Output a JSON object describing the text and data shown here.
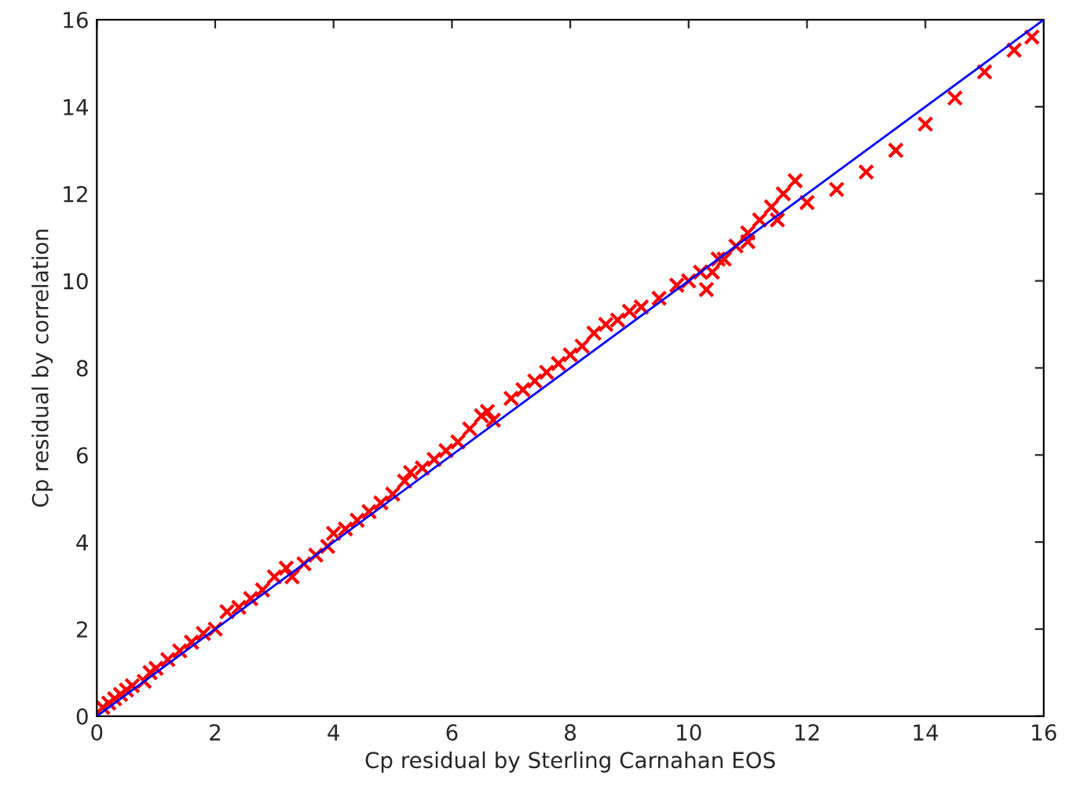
{
  "chart_data": {
    "type": "scatter",
    "xlabel": "Cp residual by Sterling Carnahan EOS",
    "ylabel": "Cp residual by correlation",
    "xlim": [
      0,
      16
    ],
    "ylim": [
      0,
      16
    ],
    "xticks": [
      0,
      2,
      4,
      6,
      8,
      10,
      12,
      14,
      16
    ],
    "yticks": [
      0,
      2,
      4,
      6,
      8,
      10,
      12,
      14,
      16
    ],
    "grid": false,
    "legend": false,
    "series": [
      {
        "color": "#ff0000",
        "marker": "cross",
        "x": [
          0.1,
          0.2,
          0.3,
          0.4,
          0.5,
          0.6,
          0.8,
          0.9,
          1.0,
          1.2,
          1.4,
          1.6,
          1.8,
          2.0,
          2.2,
          2.4,
          2.6,
          2.8,
          3.0,
          3.2,
          3.3,
          3.5,
          3.7,
          3.9,
          4.0,
          4.2,
          4.4,
          4.6,
          4.8,
          5.0,
          5.2,
          5.3,
          5.5,
          5.7,
          5.9,
          6.1,
          6.3,
          6.5,
          6.6,
          6.7,
          7.0,
          7.2,
          7.4,
          7.6,
          7.8,
          8.0,
          8.2,
          8.4,
          8.6,
          8.8,
          9.0,
          9.2,
          9.5,
          9.8,
          10.0,
          10.2,
          10.5,
          10.8,
          11.0,
          11.2,
          11.4,
          11.6,
          11.8,
          10.3,
          10.4,
          10.6,
          11.0,
          11.5,
          12.0,
          12.5,
          13.0,
          13.5,
          14.0,
          14.5,
          15.0,
          15.5,
          15.8
        ],
        "values": [
          0.2,
          0.3,
          0.4,
          0.5,
          0.6,
          0.7,
          0.8,
          1.0,
          1.1,
          1.3,
          1.5,
          1.7,
          1.9,
          2.0,
          2.4,
          2.5,
          2.7,
          2.9,
          3.2,
          3.4,
          3.2,
          3.5,
          3.7,
          3.9,
          4.2,
          4.3,
          4.5,
          4.7,
          4.9,
          5.1,
          5.4,
          5.6,
          5.7,
          5.9,
          6.1,
          6.3,
          6.6,
          6.9,
          7.0,
          6.8,
          7.3,
          7.5,
          7.7,
          7.9,
          8.1,
          8.3,
          8.5,
          8.8,
          9.0,
          9.1,
          9.3,
          9.4,
          9.6,
          9.9,
          10.0,
          10.2,
          10.5,
          10.8,
          11.1,
          11.4,
          11.7,
          12.0,
          12.3,
          9.8,
          10.2,
          10.5,
          10.9,
          11.4,
          11.8,
          12.1,
          12.5,
          13.0,
          13.6,
          14.2,
          14.8,
          15.3,
          15.6
        ]
      },
      {
        "type": "line",
        "color": "#0000ff",
        "marker": "none",
        "x": [
          0,
          16
        ],
        "values": [
          0,
          16
        ]
      }
    ]
  }
}
